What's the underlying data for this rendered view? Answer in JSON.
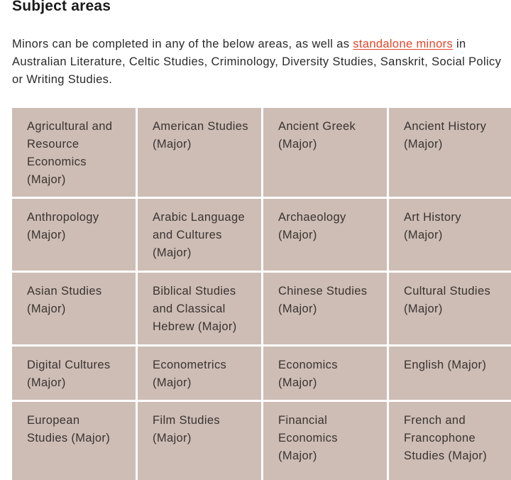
{
  "heading": "Subject areas",
  "intro": {
    "text_before": "Minors can be completed in any of the below areas, as well as ",
    "link_label": "standalone minors",
    "text_after": " in Australian Literature, Celtic Studies, Criminology, Diversity Studies, Sanskrit, Social Policy or Writing Studies."
  },
  "subjects": [
    "Agricultural and Resource Economics (Major)",
    "American Studies (Major)",
    "Ancient Greek (Major)",
    "Ancient History (Major)",
    "Anthropology (Major)",
    "Arabic Language and Cultures (Major)",
    "Archaeology (Major)",
    "Art History (Major)",
    "Asian Studies (Major)",
    "Biblical Studies and Classical Hebrew (Major)",
    "Chinese Studies (Major)",
    "Cultural Studies (Major)",
    "Digital Cultures (Major)",
    "Econometrics (Major)",
    "Economics (Major)",
    "English (Major)",
    "European Studies (Major)",
    "Film Studies (Major)",
    "Financial Economics (Major)",
    "French and Francophone Studies (Major)"
  ],
  "colors": {
    "cell_background": "#cdbdb5",
    "link": "#e5452a"
  }
}
